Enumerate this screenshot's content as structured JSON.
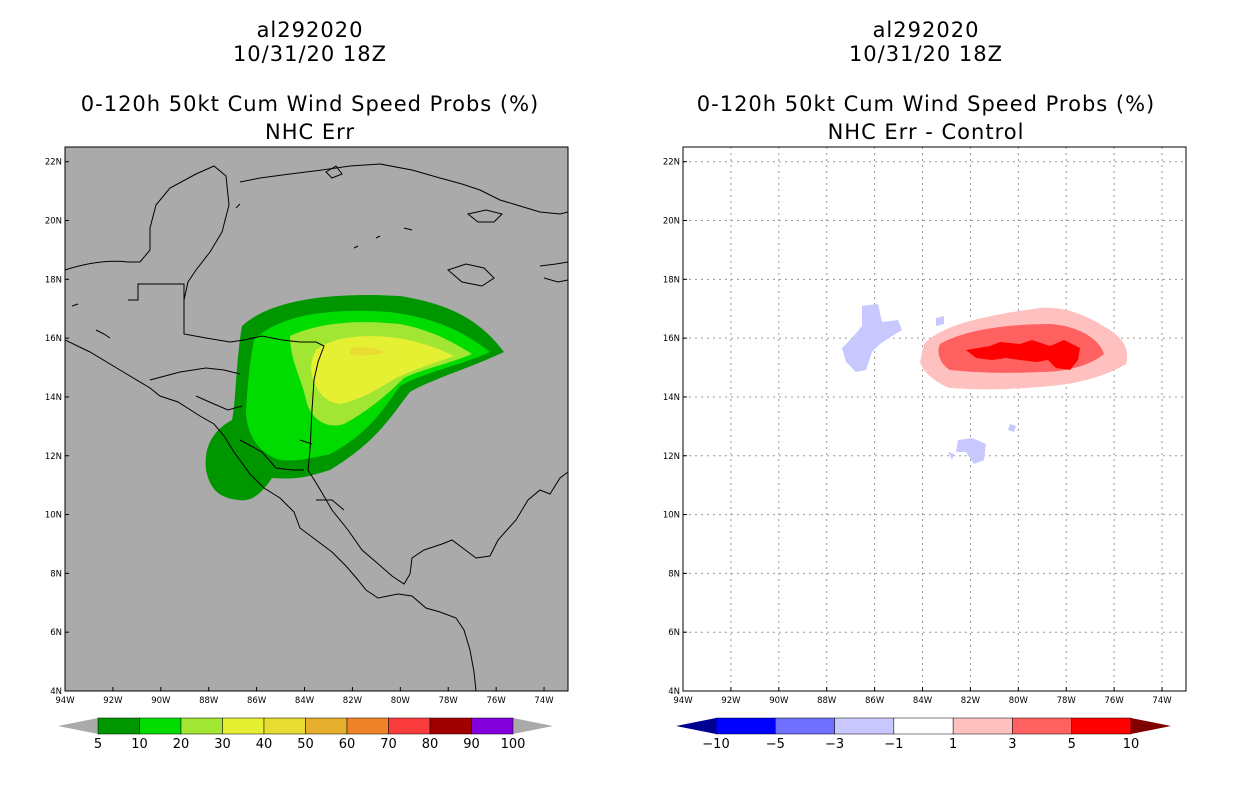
{
  "panels": [
    {
      "title": {
        "storm": "al292020",
        "datetime": "10/31/20 18Z",
        "product": "0-120h 50kt Cum Wind Speed Probs (%)",
        "subtitle": "NHC Err"
      }
    },
    {
      "title": {
        "storm": "al292020",
        "datetime": "10/31/20 18Z",
        "product": "0-120h 50kt Cum Wind Speed Probs (%)",
        "subtitle": "NHC Err - Control"
      }
    }
  ],
  "axes": {
    "lat_labels": [
      "4N",
      "6N",
      "8N",
      "10N",
      "12N",
      "14N",
      "16N",
      "18N",
      "20N",
      "22N"
    ],
    "lon_labels": [
      "94W",
      "92W",
      "90W",
      "88W",
      "86W",
      "84W",
      "82W",
      "80W",
      "78W",
      "76W",
      "74W"
    ],
    "lat_range": [
      4,
      22.5
    ],
    "lon_range": [
      -94,
      -73
    ]
  },
  "colorbar_left": {
    "labels": [
      "5",
      "10",
      "20",
      "30",
      "40",
      "50",
      "60",
      "70",
      "80",
      "90",
      "100"
    ],
    "colors": [
      "#009600",
      "#00dc00",
      "#a0e632",
      "#e6f032",
      "#e6dc32",
      "#e6af2d",
      "#f08228",
      "#fa3c3c",
      "#a00000",
      "#8200dc"
    ],
    "underflow_color": "#aaaaaa",
    "overflow_color": "#aaaaaa"
  },
  "colorbar_right": {
    "labels": [
      "−10",
      "−5",
      "−3",
      "−1",
      "1",
      "3",
      "5",
      "10"
    ],
    "colors": [
      "#0000ff",
      "#7070ff",
      "#c8c8ff",
      "#ffffff",
      "#ffc0c0",
      "#ff6060",
      "#ff0000"
    ],
    "underflow_color": "#000090",
    "overflow_color": "#800000"
  },
  "colors": {
    "map_background_left": "#aaaaaa",
    "map_background_right": "#ffffff"
  }
}
